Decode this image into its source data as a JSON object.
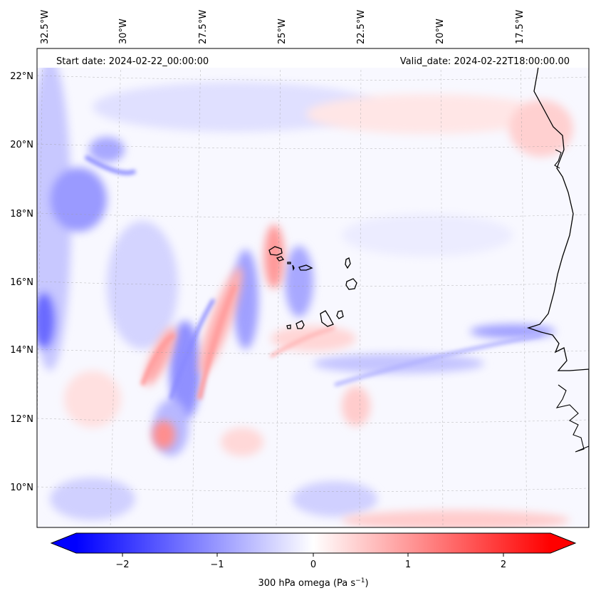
{
  "map": {
    "header": {
      "start_date": "Start date: 2024-02-22_00:00:00",
      "valid_date": "Valid_date: 2024-02-22T18:00:00.00"
    },
    "lon_labels": [
      "32.5°W",
      "30°W",
      "27.5°W",
      "25°W",
      "22.5°W",
      "20°W",
      "17.5°W"
    ],
    "lat_labels": [
      "22°N",
      "20°N",
      "18°N",
      "16°N",
      "14°N",
      "12°N",
      "10°N"
    ],
    "field": {
      "variable": "300 hPa omega",
      "negative_color": "#0000ff",
      "neutral_color": "#ffffff",
      "positive_color": "#ff0000"
    },
    "colorbar": {
      "ticks": [
        "−2",
        "−1",
        "0",
        "1",
        "2"
      ],
      "label_main": "300 hPa omega (Pa s",
      "label_exp": "−1",
      "label_end": ")"
    },
    "features": {
      "coastline": "west-africa-coastline",
      "islands": "cape-verde-islands"
    }
  }
}
